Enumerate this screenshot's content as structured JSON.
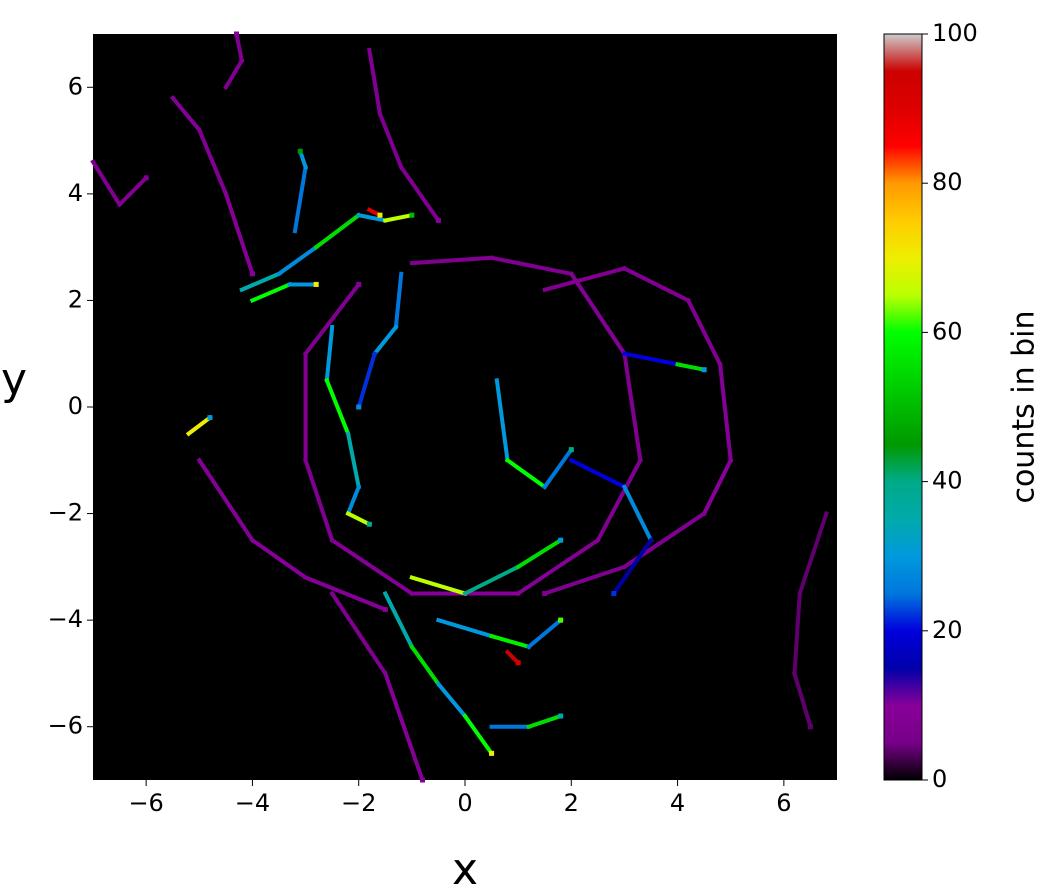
{
  "chart_data": {
    "type": "hist2d",
    "xlabel": "x",
    "ylabel": "y",
    "colorbar_label": "counts in bin",
    "colormap": "nipy_spectral",
    "xlim": [
      -7,
      7
    ],
    "ylim": [
      -7,
      7
    ],
    "clim": [
      0,
      100
    ],
    "xticks": [
      {
        "value": -6,
        "label": "−6"
      },
      {
        "value": -4,
        "label": "−4"
      },
      {
        "value": -2,
        "label": "−2"
      },
      0,
      2,
      4,
      6
    ],
    "yticks": [
      {
        "value": -6,
        "label": "−6"
      },
      {
        "value": -4,
        "label": "−4"
      },
      {
        "value": -2,
        "label": "−2"
      },
      0,
      2,
      4,
      6
    ],
    "cticks": [
      0,
      20,
      40,
      60,
      80,
      100
    ],
    "tracks": [
      {
        "x": [
          -1,
          0.5,
          2,
          3,
          3.3,
          2.5,
          1,
          -1,
          -2.5,
          -3,
          -3,
          -2
        ],
        "y": [
          2.7,
          2.8,
          2.5,
          1,
          -1,
          -2.5,
          -3.5,
          -3.5,
          -2.5,
          -1,
          1,
          2.3
        ],
        "counts": [
          8,
          8,
          9,
          8,
          8,
          9,
          10,
          9,
          8,
          8,
          8,
          9
        ]
      },
      {
        "x": [
          1.5,
          3,
          4.2,
          4.8,
          5,
          4.5,
          3,
          1.5
        ],
        "y": [
          2.2,
          2.6,
          2,
          0.8,
          -1,
          -2,
          -3,
          -3.5
        ],
        "counts": [
          8,
          8,
          8,
          9,
          10,
          8,
          8,
          8
        ]
      },
      {
        "x": [
          -2.5,
          -2.6,
          -2.2,
          -2,
          -2.2,
          -1.8
        ],
        "y": [
          1.5,
          0.5,
          -0.5,
          -1.5,
          -2,
          -2.2
        ],
        "counts": [
          30,
          60,
          35,
          28,
          65,
          40
        ]
      },
      {
        "x": [
          -4.2,
          -3.5,
          -2.8,
          -2,
          -1.5,
          -1
        ],
        "y": [
          2.2,
          2.5,
          3,
          3.6,
          3.5,
          3.6
        ],
        "counts": [
          35,
          28,
          55,
          30,
          65,
          50
        ]
      },
      {
        "x": [
          -4,
          -3.3,
          -2.8
        ],
        "y": [
          2,
          2.3,
          2.3
        ],
        "counts": [
          60,
          30,
          70
        ]
      },
      {
        "x": [
          -3.2,
          -3,
          -3.1
        ],
        "y": [
          3.3,
          4.5,
          4.8
        ],
        "counts": [
          25,
          30,
          45
        ]
      },
      {
        "x": [
          -5.5,
          -5,
          -4.5,
          -4
        ],
        "y": [
          5.8,
          5.2,
          4,
          2.5
        ],
        "counts": [
          9,
          8,
          9,
          10
        ]
      },
      {
        "x": [
          -4.5,
          -4.2,
          -4.3
        ],
        "y": [
          6,
          6.5,
          7
        ],
        "counts": [
          8,
          8,
          8
        ]
      },
      {
        "x": [
          -1.8,
          -1.6,
          -1.2,
          -0.5
        ],
        "y": [
          6.7,
          5.5,
          4.5,
          3.5
        ],
        "counts": [
          8,
          7,
          8,
          9
        ]
      },
      {
        "x": [
          -1.5,
          -1,
          -0.5,
          0,
          0.5
        ],
        "y": [
          -3.5,
          -4.5,
          -5.2,
          -5.8,
          -6.5
        ],
        "counts": [
          35,
          55,
          30,
          60,
          70
        ]
      },
      {
        "x": [
          -1,
          0,
          1,
          1.8
        ],
        "y": [
          -3.2,
          -3.5,
          -3,
          -2.5
        ],
        "counts": [
          65,
          40,
          55,
          30
        ]
      },
      {
        "x": [
          -0.5,
          0.5,
          1.2,
          1.8
        ],
        "y": [
          -4,
          -4.3,
          -4.5,
          -4
        ],
        "counts": [
          30,
          58,
          25,
          62
        ]
      },
      {
        "x": [
          0.5,
          1.2,
          1.8
        ],
        "y": [
          -6,
          -6,
          -5.8
        ],
        "counts": [
          25,
          55,
          35
        ]
      },
      {
        "x": [
          -5,
          -4,
          -3,
          -1.5
        ],
        "y": [
          -1,
          -2.5,
          -3.2,
          -3.8
        ],
        "counts": [
          9,
          10,
          9,
          10
        ]
      },
      {
        "x": [
          -2.5,
          -1.5,
          -0.8
        ],
        "y": [
          -3.5,
          -5,
          -7
        ],
        "counts": [
          8,
          9,
          9
        ]
      },
      {
        "x": [
          6.8,
          6.3,
          6.2,
          6.5
        ],
        "y": [
          -2,
          -3.5,
          -5,
          -6
        ],
        "counts": [
          4,
          4,
          4,
          4
        ]
      },
      {
        "x": [
          -7,
          -6.5,
          -6
        ],
        "y": [
          4.6,
          3.8,
          4.3
        ],
        "counts": [
          8,
          8,
          8
        ]
      },
      {
        "x": [
          -5.2,
          -4.8
        ],
        "y": [
          -0.5,
          -0.2
        ],
        "counts": [
          70,
          30
        ]
      },
      {
        "x": [
          3,
          4,
          4.5
        ],
        "y": [
          1,
          0.8,
          0.7
        ],
        "counts": [
          20,
          55,
          30
        ]
      },
      {
        "x": [
          0.6,
          0.8,
          1.5,
          2
        ],
        "y": [
          0.5,
          -1,
          -1.5,
          -0.8
        ],
        "counts": [
          30,
          60,
          25,
          40
        ]
      },
      {
        "x": [
          2,
          3,
          3.5,
          2.8
        ],
        "y": [
          -1,
          -1.5,
          -2.5,
          -3.5
        ],
        "counts": [
          20,
          28,
          15,
          22
        ]
      },
      {
        "x": [
          -1.2,
          -1.3,
          -1.7,
          -2
        ],
        "y": [
          2.5,
          1.5,
          1,
          0
        ],
        "counts": [
          25,
          30,
          22,
          28
        ]
      },
      {
        "x": [
          0.8,
          1
        ],
        "y": [
          -4.6,
          -4.8
        ],
        "counts": [
          95,
          92
        ]
      },
      {
        "x": [
          -1.8,
          -1.6
        ],
        "y": [
          3.7,
          3.6
        ],
        "counts": [
          90,
          70
        ]
      }
    ]
  }
}
